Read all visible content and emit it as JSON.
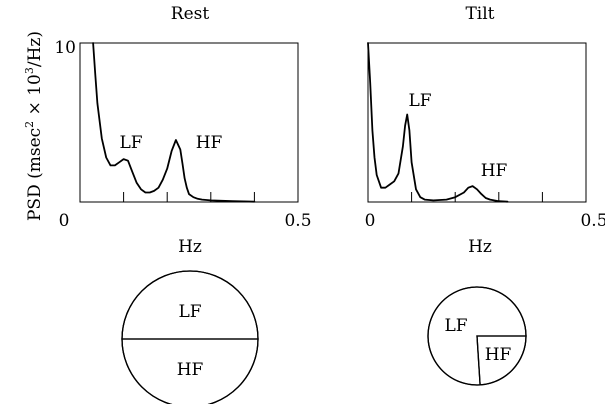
{
  "ylabel_main": "PSD (msec",
  "ylabel_sup1": "2",
  "ylabel_times": " × 10",
  "ylabel_sup2": "3",
  "ylabel_tail": "/Hz)",
  "colors": {
    "ink": "#000000",
    "background": "#ffffff"
  },
  "chart_data": [
    {
      "type": "line",
      "title": "Rest",
      "xlabel": "Hz",
      "ylabel": "PSD (msec² × 10³/Hz)",
      "xlim": [
        0,
        0.5
      ],
      "ylim": [
        0,
        10
      ],
      "x_tick_labels": [
        "0",
        "0.5"
      ],
      "y_tick_labels": [
        "0",
        "10"
      ],
      "grid": false,
      "series": [
        {
          "x": [
            0.03,
            0.035,
            0.04,
            0.05,
            0.06,
            0.07,
            0.08,
            0.09,
            0.1,
            0.11,
            0.12,
            0.13,
            0.14,
            0.15,
            0.16,
            0.17,
            0.18,
            0.19,
            0.2,
            0.21,
            0.22,
            0.23,
            0.235,
            0.24,
            0.245,
            0.25,
            0.26,
            0.27,
            0.28,
            0.3,
            0.35,
            0.4
          ],
          "y": [
            10.0,
            8.0,
            6.2,
            4.0,
            2.8,
            2.3,
            2.3,
            2.5,
            2.7,
            2.6,
            1.9,
            1.2,
            0.8,
            0.6,
            0.6,
            0.7,
            0.9,
            1.4,
            2.1,
            3.2,
            3.9,
            3.3,
            2.4,
            1.5,
            0.9,
            0.5,
            0.3,
            0.2,
            0.15,
            0.1,
            0.05,
            0.02
          ]
        }
      ],
      "annotations": [
        {
          "text": "LF",
          "x": 0.11,
          "y": 3.5
        },
        {
          "text": "HF",
          "x": 0.235,
          "y": 3.5
        }
      ]
    },
    {
      "type": "line",
      "title": "Tilt",
      "xlabel": "Hz",
      "ylabel": "",
      "xlim": [
        0,
        0.5
      ],
      "ylim": [
        0,
        10
      ],
      "x_tick_labels": [
        "0",
        "0.5"
      ],
      "grid": false,
      "series": [
        {
          "x": [
            0.0,
            0.005,
            0.01,
            0.015,
            0.02,
            0.03,
            0.04,
            0.05,
            0.06,
            0.07,
            0.08,
            0.085,
            0.09,
            0.095,
            0.1,
            0.11,
            0.12,
            0.13,
            0.15,
            0.18,
            0.2,
            0.22,
            0.23,
            0.24,
            0.25,
            0.26,
            0.27,
            0.28,
            0.3,
            0.32
          ],
          "y": [
            10.0,
            7.5,
            4.5,
            2.8,
            1.7,
            0.9,
            0.9,
            1.1,
            1.3,
            1.8,
            3.5,
            4.8,
            5.5,
            4.5,
            2.5,
            0.8,
            0.3,
            0.15,
            0.1,
            0.15,
            0.3,
            0.6,
            0.9,
            1.0,
            0.8,
            0.5,
            0.25,
            0.15,
            0.05,
            0.02
          ]
        }
      ],
      "annotations": [
        {
          "text": "LF",
          "x": 0.09,
          "y": 6.5
        },
        {
          "text": "HF",
          "x": 0.265,
          "y": 1.8
        }
      ]
    },
    {
      "type": "pie",
      "title": "",
      "categories": [
        "LF",
        "HF"
      ],
      "values": [
        50,
        50
      ]
    },
    {
      "type": "pie",
      "title": "",
      "categories": [
        "LF",
        "HF"
      ],
      "values": [
        76,
        24
      ]
    }
  ]
}
